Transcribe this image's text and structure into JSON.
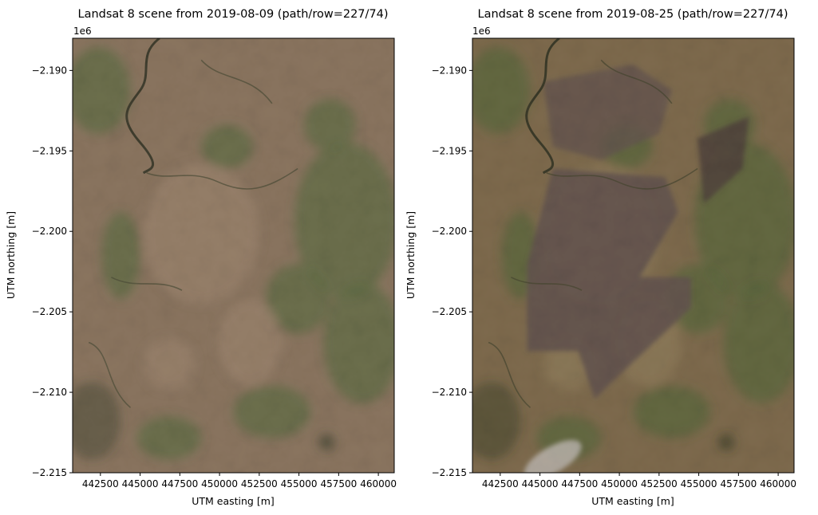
{
  "colors": {
    "axis": "#000000",
    "bg": "#ffffff"
  },
  "chart_data": [
    {
      "type": "image",
      "title": "Landsat 8 scene from 2019-08-09 (path/row=227/74)",
      "xlabel": "UTM easting [m]",
      "ylabel": "UTM northing [m]",
      "y_offset_label": "1e6",
      "xlim": [
        440750,
        461000
      ],
      "ylim": [
        -2215,
        -2188
      ],
      "x_ticks": [
        {
          "value": 442500,
          "label": "442500"
        },
        {
          "value": 445000,
          "label": "445000"
        },
        {
          "value": 447500,
          "label": "447500"
        },
        {
          "value": 450000,
          "label": "450000"
        },
        {
          "value": 452500,
          "label": "452500"
        },
        {
          "value": 455000,
          "label": "455000"
        },
        {
          "value": 457500,
          "label": "457500"
        },
        {
          "value": 460000,
          "label": "460000"
        }
      ],
      "y_ticks": [
        {
          "value": -2190,
          "label": "−2.190"
        },
        {
          "value": -2195,
          "label": "−2.195"
        },
        {
          "value": -2200,
          "label": "−2.200"
        },
        {
          "value": -2205,
          "label": "−2.205"
        },
        {
          "value": -2210,
          "label": "−2.210"
        },
        {
          "value": -2215,
          "label": "−2.215"
        }
      ],
      "image_colors": {
        "base": "#8a7560",
        "green": "#4e6a3a",
        "dark": "#2f3a25",
        "river": "#1c2418",
        "pale": "#a89078"
      },
      "burned": false
    },
    {
      "type": "image",
      "title": "Landsat 8 scene from 2019-08-25 (path/row=227/74)",
      "xlabel": "UTM easting [m]",
      "ylabel": "UTM northing [m]",
      "y_offset_label": "1e6",
      "xlim": [
        440750,
        461000
      ],
      "ylim": [
        -2215,
        -2188
      ],
      "x_ticks": [
        {
          "value": 442500,
          "label": "442500"
        },
        {
          "value": 445000,
          "label": "445000"
        },
        {
          "value": 447500,
          "label": "447500"
        },
        {
          "value": 450000,
          "label": "450000"
        },
        {
          "value": 452500,
          "label": "452500"
        },
        {
          "value": 455000,
          "label": "455000"
        },
        {
          "value": 457500,
          "label": "457500"
        },
        {
          "value": 460000,
          "label": "460000"
        }
      ],
      "y_ticks": [
        {
          "value": -2190,
          "label": "−2.190"
        },
        {
          "value": -2195,
          "label": "−2.195"
        },
        {
          "value": -2200,
          "label": "−2.200"
        },
        {
          "value": -2205,
          "label": "−2.205"
        },
        {
          "value": -2210,
          "label": "−2.210"
        },
        {
          "value": -2215,
          "label": "−2.215"
        }
      ],
      "image_colors": {
        "base": "#7e6b4e",
        "green": "#4a6636",
        "dark": "#2c3522",
        "river": "#1c2418",
        "pale": "#9c8a66",
        "burn": "#544850",
        "burn_dark": "#3a3034",
        "smoke": "#d8d8dc"
      },
      "burned": true
    }
  ]
}
